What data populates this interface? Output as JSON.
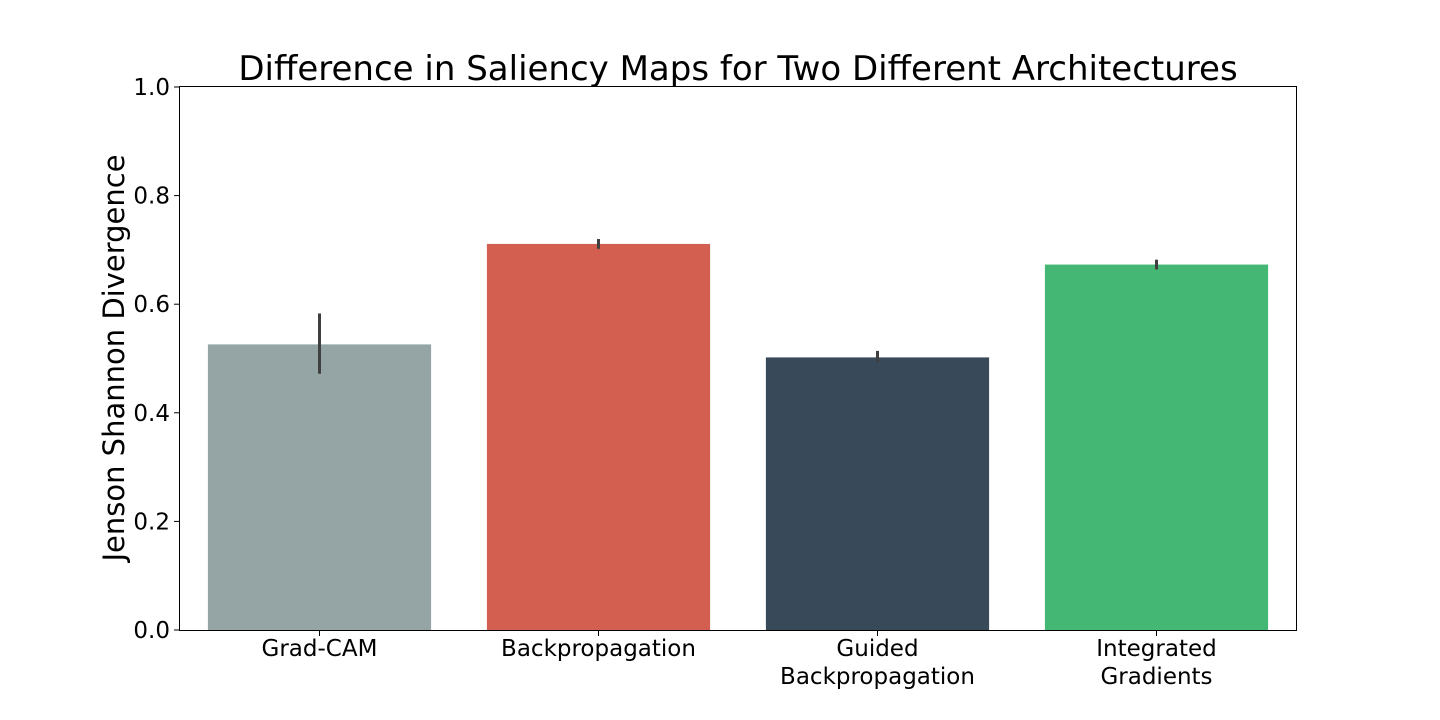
{
  "chart_data": {
    "type": "bar",
    "title": "Difference in Saliency Maps for Two Different Architectures",
    "xlabel": "",
    "ylabel": "Jenson Shannon Divergence",
    "categories": [
      [
        "Grad-CAM"
      ],
      [
        "Backpropagation"
      ],
      [
        "Guided",
        "Backpropagation"
      ],
      [
        "Integrated",
        "Gradients"
      ]
    ],
    "values": [
      0.526,
      0.711,
      0.502,
      0.673
    ],
    "error_low": [
      0.472,
      0.702,
      0.493,
      0.664
    ],
    "error_high": [
      0.583,
      0.72,
      0.514,
      0.682
    ],
    "colors": [
      "#95a5a6",
      "#d35f51",
      "#38495a",
      "#45b775"
    ],
    "error_color": "#3f3f3f",
    "ylim": [
      0,
      1.0
    ],
    "yticks": [
      "0.0",
      "0.2",
      "0.4",
      "0.6",
      "0.8",
      "1.0"
    ],
    "grid": false,
    "legend": "none"
  }
}
